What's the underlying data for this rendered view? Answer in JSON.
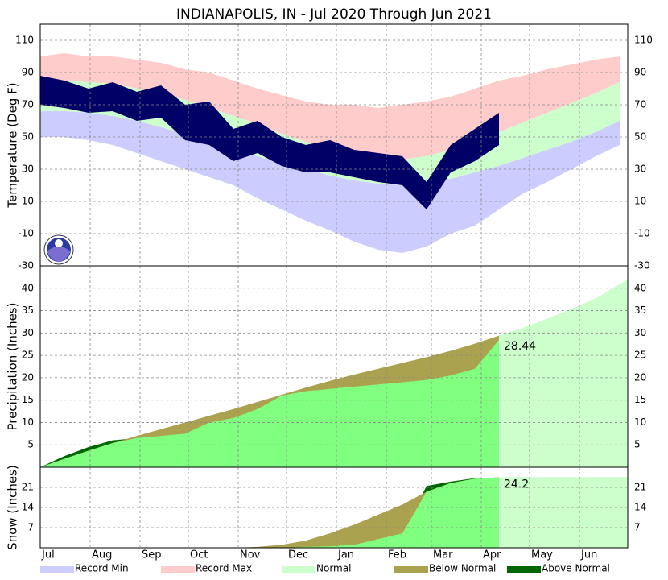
{
  "chart_data": [
    {
      "type": "area",
      "title": "INDIANAPOLIS, IN - Jul 2020 Through Jun 2021",
      "y_label": "Temperature (Deg F)",
      "x": [
        0,
        15,
        30,
        45,
        60,
        75,
        90,
        105,
        120,
        135,
        150,
        165,
        180,
        195,
        210,
        225,
        240,
        255,
        270,
        285,
        300,
        315,
        330,
        345,
        360
      ],
      "xlim": [
        0,
        365
      ],
      "ylim": [
        -30,
        120
      ],
      "yticks": [
        -30,
        -10,
        10,
        30,
        50,
        70,
        90,
        110
      ],
      "grid": true,
      "record_max": [
        100,
        102,
        100,
        100,
        98,
        96,
        92,
        90,
        85,
        80,
        76,
        72,
        70,
        70,
        68,
        70,
        72,
        75,
        80,
        85,
        88,
        92,
        95,
        98,
        100
      ],
      "normal_high": [
        85,
        85,
        84,
        83,
        80,
        77,
        73,
        68,
        63,
        58,
        52,
        47,
        42,
        38,
        36,
        36,
        38,
        42,
        47,
        53,
        59,
        65,
        71,
        77,
        84
      ],
      "normal_low": [
        66,
        66,
        65,
        63,
        60,
        56,
        52,
        47,
        42,
        38,
        34,
        30,
        26,
        23,
        21,
        20,
        21,
        24,
        28,
        32,
        37,
        42,
        47,
        53,
        60
      ],
      "record_min": [
        50,
        50,
        48,
        45,
        40,
        35,
        30,
        25,
        20,
        12,
        5,
        -2,
        -8,
        -15,
        -20,
        -22,
        -18,
        -10,
        -5,
        5,
        15,
        22,
        30,
        38,
        45
      ],
      "observed_high": [
        88,
        85,
        80,
        84,
        78,
        82,
        70,
        72,
        55,
        60,
        50,
        45,
        48,
        42,
        40,
        38,
        22,
        45,
        55,
        65,
        null,
        null,
        null,
        null,
        null
      ],
      "observed_low": [
        70,
        68,
        65,
        66,
        60,
        62,
        48,
        45,
        35,
        40,
        32,
        28,
        28,
        25,
        22,
        20,
        5,
        28,
        35,
        45,
        null,
        null,
        null,
        null,
        null
      ],
      "colors": {
        "record_max": "#ffcccc",
        "normal": "#ccffcc",
        "record_min": "#ccccff",
        "observed": "#000066"
      }
    },
    {
      "type": "cumulative",
      "y_label": "Precipitation (Inches)",
      "x": [
        0,
        15,
        30,
        45,
        60,
        75,
        90,
        105,
        120,
        135,
        150,
        165,
        180,
        195,
        210,
        225,
        240,
        255,
        270,
        285,
        300,
        315,
        330,
        345,
        365
      ],
      "xlim": [
        0,
        365
      ],
      "ylim": [
        0,
        45
      ],
      "yticks": [
        5,
        10,
        15,
        20,
        25,
        30,
        35,
        40
      ],
      "grid": true,
      "normal": [
        0,
        1.9,
        3.7,
        5.4,
        7,
        8.5,
        10,
        11.5,
        13,
        14.6,
        16.2,
        17.8,
        19.3,
        20.7,
        22,
        23.3,
        24.6,
        26,
        27.6,
        29.4,
        31.2,
        33.2,
        35.4,
        37.7,
        42
      ],
      "observed": [
        0,
        2.5,
        4.5,
        6,
        6.5,
        7,
        7.5,
        10,
        11,
        13,
        16,
        17,
        17.5,
        18,
        18.5,
        19,
        19.5,
        20.5,
        22,
        28.44,
        null,
        null,
        null,
        null,
        null
      ],
      "colors": {
        "normal": "#ccffcc",
        "observed": "#80ff80",
        "below": "#aaa24f",
        "above": "#006600"
      }
    },
    {
      "type": "cumulative",
      "y_label": "Snow (Inches)",
      "x": [
        0,
        15,
        30,
        45,
        60,
        75,
        90,
        105,
        120,
        135,
        150,
        165,
        180,
        195,
        210,
        225,
        240,
        255,
        270,
        285,
        300,
        315,
        330,
        345,
        365
      ],
      "xlim": [
        0,
        365
      ],
      "ylim": [
        0,
        28
      ],
      "yticks": [
        7,
        14,
        21
      ],
      "grid": true,
      "xticks": [
        {
          "value": 0,
          "label": "Jul"
        },
        {
          "value": 31,
          "label": "Aug"
        },
        {
          "value": 62,
          "label": "Sep"
        },
        {
          "value": 92,
          "label": "Oct"
        },
        {
          "value": 123,
          "label": "Nov"
        },
        {
          "value": 153,
          "label": "Dec"
        },
        {
          "value": 184,
          "label": "Jan"
        },
        {
          "value": 215,
          "label": "Feb"
        },
        {
          "value": 243,
          "label": "Mar"
        },
        {
          "value": 274,
          "label": "Apr"
        },
        {
          "value": 304,
          "label": "May"
        },
        {
          "value": 335,
          "label": "Jun"
        }
      ],
      "normal": [
        0,
        0,
        0,
        0,
        0,
        0,
        0,
        0,
        0,
        0.3,
        1,
        2.5,
        5,
        8,
        11.5,
        15,
        19.5,
        22.5,
        24,
        24.5,
        24.6,
        24.6,
        24.6,
        24.6,
        24.6
      ],
      "observed": [
        0,
        0,
        0,
        0,
        0,
        0,
        0,
        0,
        0,
        0,
        0,
        0.3,
        0.5,
        1,
        3,
        5,
        21.5,
        23,
        24.2,
        24.2,
        null,
        null,
        null,
        null,
        null
      ],
      "colors": {
        "normal": "#ccffcc",
        "observed": "#80ff80",
        "below": "#aaa24f",
        "above": "#006600"
      }
    }
  ],
  "legend": [
    {
      "name": "Record Min",
      "color": "#ccccff"
    },
    {
      "name": "Record Max",
      "color": "#ffcccc"
    },
    {
      "name": "Normal",
      "color": "#ccffcc"
    },
    {
      "name": "Below Normal",
      "color": "#aaa24f"
    },
    {
      "name": "Above Normal",
      "color": "#006600"
    }
  ]
}
